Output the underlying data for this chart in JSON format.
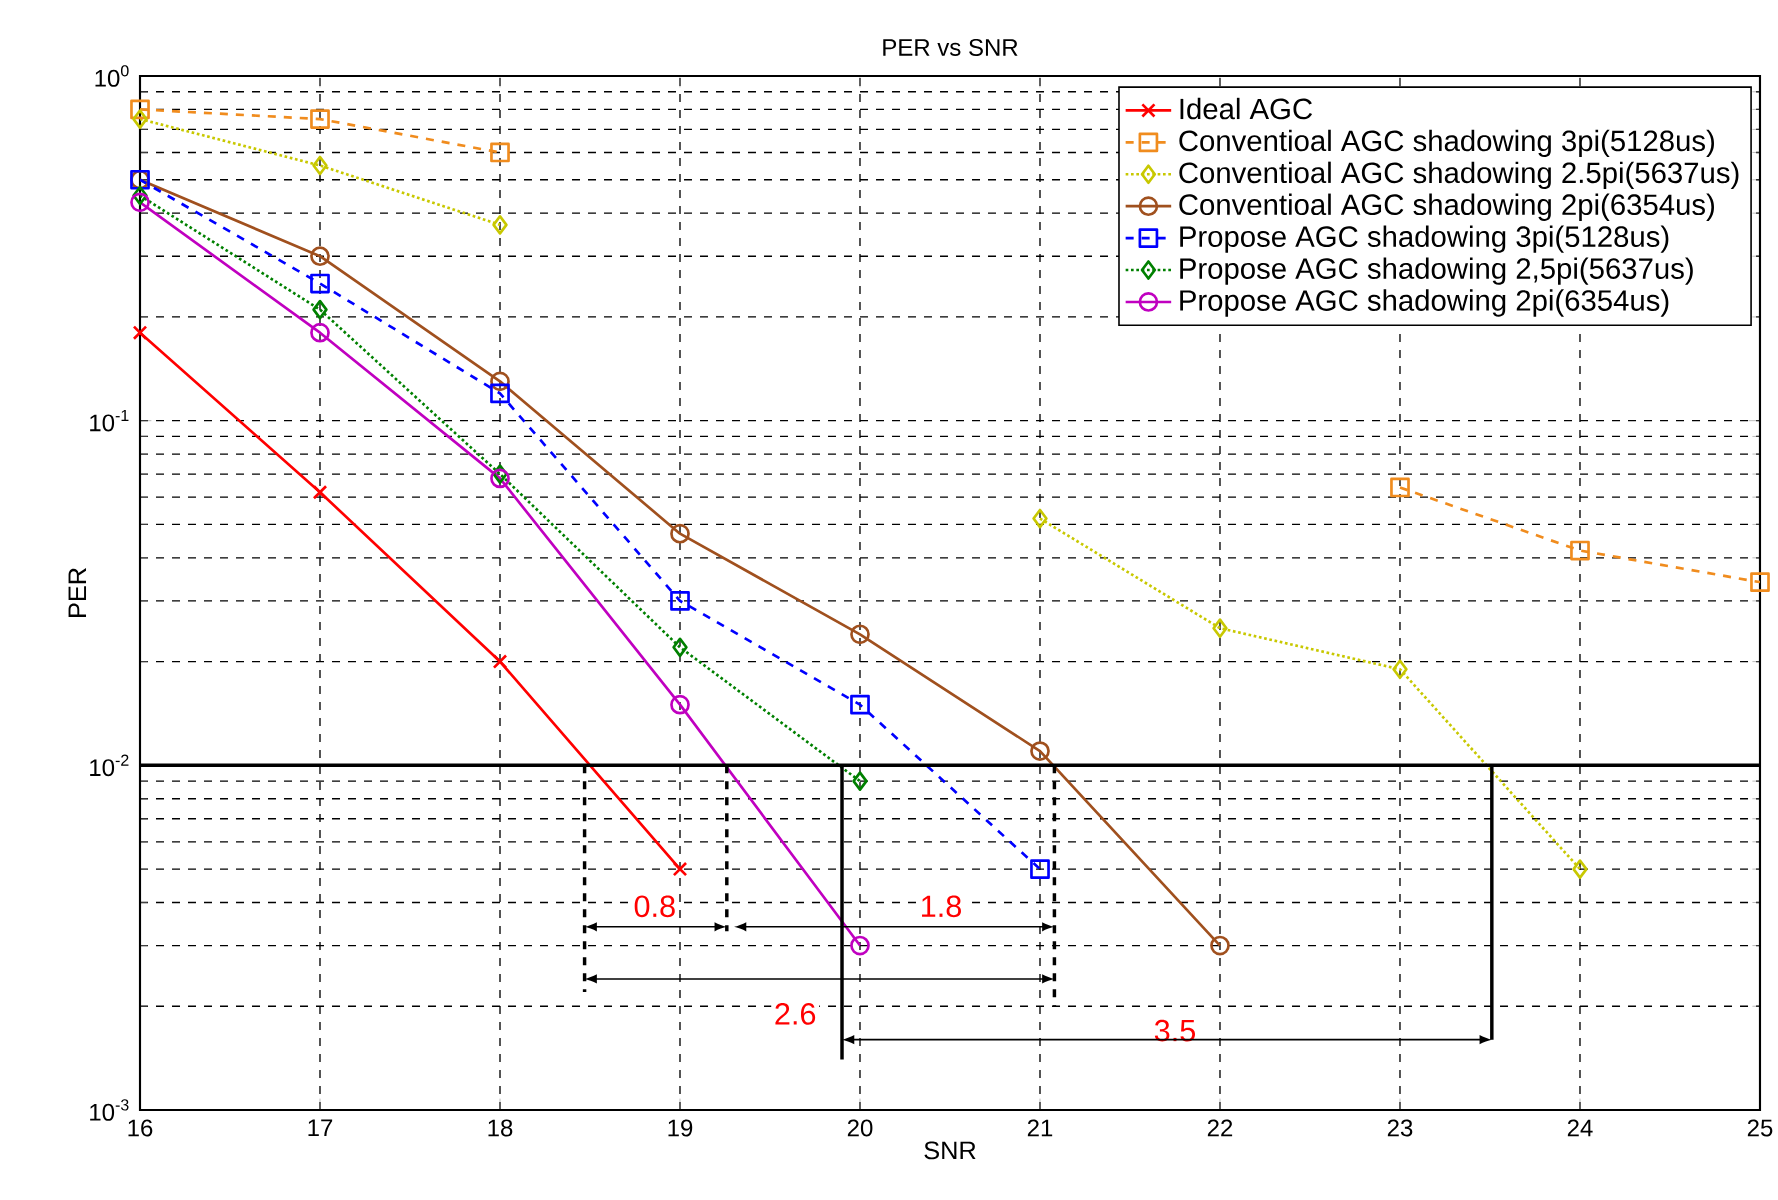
{
  "chart_data": {
    "type": "line",
    "title": "PER vs SNR",
    "xlabel": "SNR",
    "ylabel": "PER",
    "log": "y",
    "x": [
      16,
      17,
      18,
      19,
      20,
      21,
      22,
      23,
      24,
      25
    ],
    "xlim": [
      16,
      25
    ],
    "xticks": [
      16,
      17,
      18,
      19,
      20,
      21,
      22,
      23,
      24,
      25
    ],
    "ylim": [
      0.001,
      1
    ],
    "yticks": [
      {
        "value": 0.001,
        "label": "10$^{-3}$"
      },
      {
        "value": 0.01,
        "label": "10$^{-2}$"
      },
      {
        "value": 0.1,
        "label": "10$^{-1}$"
      },
      {
        "value": 1,
        "label": "10$^{0}$"
      }
    ],
    "grid": true,
    "legend": "top right",
    "series": [
      {
        "name": "Ideal AGC",
        "color": "#ff0000",
        "marker": "cross",
        "line_style": "solid",
        "values": [
          0.18,
          0.062,
          0.02,
          0.005,
          null,
          null,
          null,
          null,
          null,
          null
        ]
      },
      {
        "name": "Conventioal AGC shadowing 3pi(5128us)",
        "color": "#f08c1e",
        "marker": "square",
        "line_style": "dashed",
        "values": [
          0.8,
          0.75,
          0.6,
          null,
          null,
          null,
          null,
          0.064,
          0.042,
          0.034
        ]
      },
      {
        "name": "Conventioal AGC shadowing 2.5pi(5637us)",
        "color": "#c8c800",
        "marker": "diamond",
        "line_style": "dotted",
        "values": [
          0.75,
          0.55,
          0.37,
          null,
          null,
          0.052,
          0.025,
          0.019,
          0.005,
          null
        ]
      },
      {
        "name": "Conventioal AGC shadowing 2pi(6354us)",
        "color": "#a0501e",
        "marker": "circle",
        "line_style": "solid",
        "values": [
          0.5,
          0.3,
          0.13,
          0.047,
          0.024,
          0.011,
          0.003,
          null,
          null,
          null
        ]
      },
      {
        "name": "Propose AGC shadowing 3pi(5128us)",
        "color": "#0000ff",
        "marker": "square",
        "line_style": "dashed",
        "values": [
          0.5,
          0.25,
          0.12,
          0.03,
          0.015,
          0.005,
          null,
          null,
          null,
          null
        ]
      },
      {
        "name": "Propose AGC shadowing 2,5pi(5637us)",
        "color": "#008000",
        "marker": "diamond",
        "line_style": "dotted",
        "values": [
          0.45,
          0.21,
          0.07,
          0.022,
          0.009,
          null,
          null,
          null,
          null,
          null
        ]
      },
      {
        "name": "Propose AGC shadowing 2pi(6354us)",
        "color": "#c000c0",
        "marker": "circle",
        "line_style": "solid",
        "values": [
          0.43,
          0.18,
          0.068,
          0.015,
          0.003,
          null,
          null,
          null,
          null,
          null
        ]
      }
    ],
    "ref_lines": [
      {
        "axis": "y",
        "value": 0.01,
        "color": "#000000",
        "line_style": "solid"
      }
    ],
    "annotations": [
      {
        "text": "0.8",
        "x": 18.86,
        "y": 0.0039
      },
      {
        "text": "1.8",
        "x": 20.45,
        "y": 0.0039
      },
      {
        "text": "2.6",
        "x": 19.64,
        "y": 0.0019
      },
      {
        "text": "3.5",
        "x": 21.75,
        "y": 0.0017
      }
    ]
  }
}
